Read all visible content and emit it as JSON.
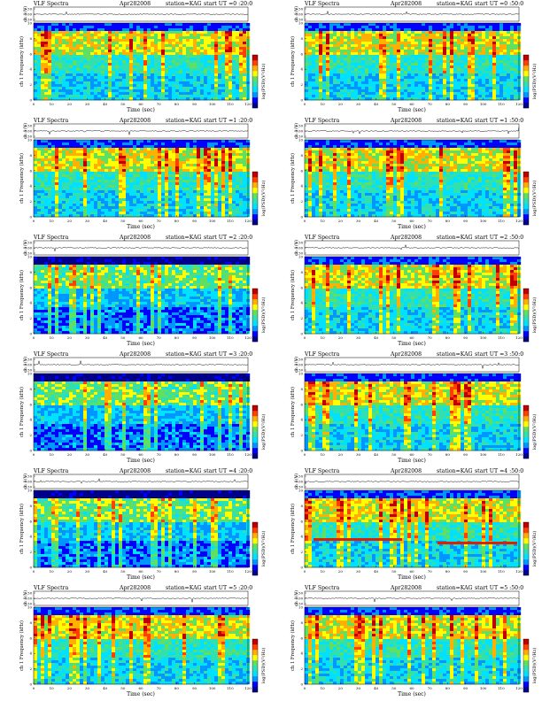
{
  "colors": {
    "colormap": [
      "#00008b",
      "#0000ff",
      "#0096ff",
      "#00e0ff",
      "#30e0b0",
      "#60e060",
      "#ffff00",
      "#ffb000",
      "#ff4000",
      "#c00000"
    ],
    "trace": "#000000",
    "background": "#ffffff"
  },
  "chart_data": [
    {
      "type": "heatmap",
      "title": "VLF Spectra",
      "date": "Apr282008",
      "station": "station=KAG",
      "start": "start  UT =0 :20:0",
      "trace_label": "ch 1(V)",
      "trace_ticks": [
        "0.50",
        "0.00",
        "-0.50"
      ],
      "ylabel": "ch 1 Frequency (kHz)",
      "xlabel": "Time (sec)",
      "x_ticks": [
        "0",
        "10",
        "20",
        "30",
        "40",
        "50",
        "60",
        "70",
        "80",
        "90",
        "100",
        "110",
        "120"
      ],
      "y_ticks": [
        "0",
        "2",
        "4",
        "6",
        "8",
        "10"
      ],
      "xlim": [
        0,
        120
      ],
      "ylim": [
        0,
        10
      ],
      "colorbar_label": "log(PSD)(V²/Hz)"
    },
    {
      "type": "heatmap",
      "title": "VLF Spectra",
      "date": "Apr282008",
      "station": "station=KAG",
      "start": "start  UT =0 :50:0",
      "trace_label": "ch 1(V)",
      "trace_ticks": [
        "0.50",
        "0.00",
        "-0.50"
      ],
      "ylabel": "ch 1 Frequency (kHz)",
      "xlabel": "Time (sec)",
      "x_ticks": [
        "0",
        "10",
        "20",
        "30",
        "40",
        "50",
        "60",
        "70",
        "80",
        "90",
        "100",
        "110",
        "120"
      ],
      "y_ticks": [
        "0",
        "2",
        "4",
        "6",
        "8",
        "10"
      ],
      "xlim": [
        0,
        120
      ],
      "ylim": [
        0,
        10
      ],
      "colorbar_label": "log(PSD)(V²/Hz)"
    },
    {
      "type": "heatmap",
      "title": "VLF Spectra",
      "date": "Apr282008",
      "station": "station=KAG",
      "start": "start  UT =1 :20:0",
      "trace_label": "ch 1(V)",
      "trace_ticks": [
        "0.50",
        "0.00",
        "-0.50"
      ],
      "ylabel": "ch 1 Frequency (kHz)",
      "xlabel": "Time (sec)",
      "x_ticks": [
        "0",
        "10",
        "20",
        "30",
        "40",
        "50",
        "60",
        "70",
        "80",
        "90",
        "100",
        "110",
        "120"
      ],
      "y_ticks": [
        "0",
        "2",
        "4",
        "6",
        "8",
        "10"
      ],
      "xlim": [
        0,
        120
      ],
      "ylim": [
        0,
        10
      ],
      "colorbar_label": "log(PSD)(V²/Hz)"
    },
    {
      "type": "heatmap",
      "title": "VLF Spectra",
      "date": "Apr282008",
      "station": "station=KAG",
      "start": "start  UT =1 :50:0",
      "trace_label": "ch 1(V)",
      "trace_ticks": [
        "0.50",
        "0.00",
        "-0.50"
      ],
      "ylabel": "ch 1 Frequency (kHz)",
      "xlabel": "Time (sec)",
      "x_ticks": [
        "0",
        "10",
        "20",
        "30",
        "40",
        "50",
        "60",
        "70",
        "80",
        "90",
        "100",
        "110",
        "120"
      ],
      "y_ticks": [
        "0",
        "2",
        "4",
        "6",
        "8",
        "10"
      ],
      "xlim": [
        0,
        120
      ],
      "ylim": [
        0,
        10
      ],
      "colorbar_label": "log(PSD)(V²/Hz)"
    },
    {
      "type": "heatmap",
      "title": "VLF Spectra",
      "date": "Apr282008",
      "station": "station=KAG",
      "start": "start  UT =2 :20:0",
      "trace_label": "ch 1(V)",
      "trace_ticks": [
        "0.50",
        "0.00",
        "-0.50"
      ],
      "ylabel": "ch 1 Frequency (kHz)",
      "xlabel": "Time (sec)",
      "x_ticks": [
        "0",
        "10",
        "20",
        "30",
        "40",
        "50",
        "60",
        "70",
        "80",
        "90",
        "100",
        "110",
        "120"
      ],
      "y_ticks": [
        "0",
        "2",
        "4",
        "6",
        "8",
        "10"
      ],
      "xlim": [
        0,
        120
      ],
      "ylim": [
        0,
        10
      ],
      "colorbar_label": "log(PSD)(V²/Hz)"
    },
    {
      "type": "heatmap",
      "title": "VLF Spectra",
      "date": "Apr282008",
      "station": "station=KAG",
      "start": "start  UT =2 :50:0",
      "trace_label": "ch 1(V)",
      "trace_ticks": [
        "0.50",
        "0.00",
        "-0.50"
      ],
      "ylabel": "ch 1 Frequency (kHz)",
      "xlabel": "Time (sec)",
      "x_ticks": [
        "0",
        "10",
        "20",
        "30",
        "40",
        "50",
        "60",
        "70",
        "80",
        "90",
        "100",
        "110",
        "120"
      ],
      "y_ticks": [
        "0",
        "2",
        "4",
        "6",
        "8",
        "10"
      ],
      "xlim": [
        0,
        120
      ],
      "ylim": [
        0,
        10
      ],
      "colorbar_label": "log(PSD)(V²/Hz)"
    },
    {
      "type": "heatmap",
      "title": "VLF Spectra",
      "date": "Apr282008",
      "station": "station=KAG",
      "start": "start  UT =3 :20:0",
      "trace_label": "ch 1(V)",
      "trace_ticks": [
        "0.50",
        "0.00",
        "-0.50"
      ],
      "ylabel": "ch 1 Frequency (kHz)",
      "xlabel": "Time (sec)",
      "x_ticks": [
        "0",
        "10",
        "20",
        "30",
        "40",
        "50",
        "60",
        "70",
        "80",
        "90",
        "100",
        "110",
        "120"
      ],
      "y_ticks": [
        "0",
        "2",
        "4",
        "6",
        "8",
        "10"
      ],
      "xlim": [
        0,
        120
      ],
      "ylim": [
        0,
        10
      ],
      "colorbar_label": "log(PSD)(V²/Hz)"
    },
    {
      "type": "heatmap",
      "title": "VLF Spectra",
      "date": "Apr282008",
      "station": "station=KAG",
      "start": "start  UT =3 :50:0",
      "trace_label": "ch 1(V)",
      "trace_ticks": [
        "0.50",
        "0.00",
        "-0.50"
      ],
      "ylabel": "ch 1 Frequency (kHz)",
      "xlabel": "Time (sec)",
      "x_ticks": [
        "0",
        "10",
        "20",
        "30",
        "40",
        "50",
        "60",
        "70",
        "80",
        "90",
        "100",
        "110",
        "120"
      ],
      "y_ticks": [
        "0",
        "2",
        "4",
        "6",
        "8",
        "10"
      ],
      "xlim": [
        0,
        120
      ],
      "ylim": [
        0,
        10
      ],
      "colorbar_label": "log(PSD)(V²/Hz)"
    },
    {
      "type": "heatmap",
      "title": "VLF Spectra",
      "date": "Apr282008",
      "station": "station=KAG",
      "start": "start  UT =4 :20:0",
      "trace_label": "ch 1(V)",
      "trace_ticks": [
        "0.50",
        "0.00",
        "-0.50"
      ],
      "ylabel": "ch 1 Frequency (kHz)",
      "xlabel": "Time (sec)",
      "x_ticks": [
        "0",
        "10",
        "20",
        "30",
        "40",
        "50",
        "60",
        "70",
        "80",
        "90",
        "100",
        "110",
        "120"
      ],
      "y_ticks": [
        "0",
        "2",
        "4",
        "6",
        "8",
        "10"
      ],
      "xlim": [
        0,
        120
      ],
      "ylim": [
        0,
        10
      ],
      "colorbar_label": "log(PSD)(V²/Hz)"
    },
    {
      "type": "heatmap",
      "title": "VLF Spectra",
      "date": "Apr282008",
      "station": "station=KAG",
      "start": "start  UT =4 :50:0",
      "trace_label": "ch 1(V)",
      "trace_ticks": [
        "0.50",
        "0.00",
        "-0.50"
      ],
      "ylabel": "ch 1 Frequency (kHz)",
      "xlabel": "Time (sec)",
      "x_ticks": [
        "0",
        "10",
        "20",
        "30",
        "40",
        "50",
        "60",
        "70",
        "80",
        "90",
        "100",
        "110",
        "120"
      ],
      "y_ticks": [
        "0",
        "2",
        "4",
        "6",
        "8",
        "10"
      ],
      "xlim": [
        0,
        120
      ],
      "ylim": [
        0,
        10
      ],
      "colorbar_label": "log(PSD)(V²/Hz)"
    },
    {
      "type": "heatmap",
      "title": "VLF Spectra",
      "date": "Apr282008",
      "station": "station=KAG",
      "start": "start  UT =5 :20:0",
      "trace_label": "ch 1(V)",
      "trace_ticks": [
        "0.50",
        "0.00",
        "-0.50"
      ],
      "ylabel": "ch 1 Frequency (kHz)",
      "xlabel": "Time (sec)",
      "x_ticks": [
        "0",
        "10",
        "20",
        "30",
        "40",
        "50",
        "60",
        "70",
        "80",
        "90",
        "100",
        "110",
        "120"
      ],
      "y_ticks": [
        "0",
        "2",
        "4",
        "6",
        "8",
        "10"
      ],
      "xlim": [
        0,
        120
      ],
      "ylim": [
        0,
        10
      ],
      "colorbar_label": "log(PSD)(V²/Hz)"
    },
    {
      "type": "heatmap",
      "title": "VLF Spectra",
      "date": "Apr282008",
      "station": "station=KAG",
      "start": "start  UT =5 :50:0",
      "trace_label": "ch 1(V)",
      "trace_ticks": [
        "0.50",
        "0.00",
        "-0.50"
      ],
      "ylabel": "ch 1 Frequency (kHz)",
      "xlabel": "Time (sec)",
      "x_ticks": [
        "0",
        "10",
        "20",
        "30",
        "40",
        "50",
        "60",
        "70",
        "80",
        "90",
        "100",
        "110",
        "120"
      ],
      "y_ticks": [
        "0",
        "2",
        "4",
        "6",
        "8",
        "10"
      ],
      "xlim": [
        0,
        120
      ],
      "ylim": [
        0,
        10
      ],
      "colorbar_label": "log(PSD)(V²/Hz)"
    }
  ]
}
